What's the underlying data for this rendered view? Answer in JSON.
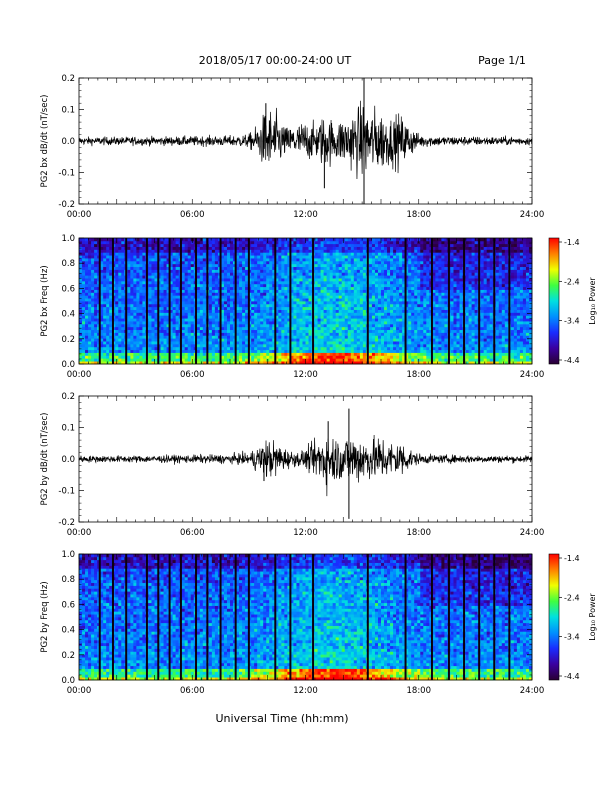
{
  "header": {
    "title": "2018/05/17  00:00-24:00 UT",
    "page": "Page 1/1"
  },
  "footer": {
    "xlabel": "Universal Time (hh:mm)"
  },
  "colorbar": {
    "label": "Log₁₀ Power",
    "ticks": [
      "-1.4",
      "-2.4",
      "-3.4",
      "-4.4"
    ]
  },
  "colors": {
    "trace": "#000000",
    "scale": [
      "#2a0033",
      "#3a00a0",
      "#1a2cff",
      "#0090ff",
      "#00e0e0",
      "#40ff40",
      "#f0ff00",
      "#ff8000",
      "#ff0000"
    ]
  },
  "chart_data": [
    {
      "type": "line",
      "ylabel": "PG2 bx dB/dt (nT/sec)",
      "xlabel": "",
      "x_ticks": [
        "00:00",
        "06:00",
        "12:00",
        "18:00",
        "24:00"
      ],
      "y_ticks": [
        "0.2",
        "0.1",
        "0.0",
        "-0.1",
        "-0.2"
      ],
      "xlim_hours": [
        0,
        24
      ],
      "ylim": [
        -0.2,
        0.2
      ],
      "envelope_hours": [
        0,
        2,
        4,
        6,
        8,
        9,
        9.5,
        10,
        10.5,
        11,
        11.5,
        12,
        12.5,
        13,
        13.5,
        14,
        14.5,
        15,
        15.5,
        16,
        16.5,
        17,
        17.5,
        18,
        19,
        20,
        22,
        24
      ],
      "envelope_amplitude": [
        0.012,
        0.012,
        0.013,
        0.014,
        0.016,
        0.02,
        0.05,
        0.1,
        0.08,
        0.04,
        0.05,
        0.06,
        0.05,
        0.08,
        0.06,
        0.07,
        0.09,
        0.11,
        0.1,
        0.09,
        0.07,
        0.08,
        0.05,
        0.02,
        0.015,
        0.014,
        0.013,
        0.012
      ],
      "spikes": [
        {
          "x": 15.1,
          "y": 0.2
        },
        {
          "x": 15.1,
          "y": -0.2
        },
        {
          "x": 9.9,
          "y": 0.12
        },
        {
          "x": 13.0,
          "y": -0.15
        }
      ]
    },
    {
      "type": "heatmap",
      "ylabel": "PG2 bx Freq (Hz)",
      "xlabel": "",
      "x_ticks": [
        "00:00",
        "06:00",
        "12:00",
        "18:00",
        "24:00"
      ],
      "y_ticks": [
        "1.0",
        "0.8",
        "0.6",
        "0.4",
        "0.2",
        "0.0"
      ],
      "xlim_hours": [
        0,
        24
      ],
      "ylim": [
        0,
        1.0
      ],
      "zlim": [
        -4.4,
        -1.4
      ],
      "gap_lines_hours": [
        1.1,
        1.8,
        2.5,
        3.6,
        4.2,
        4.8,
        5.4,
        6.2,
        6.8,
        7.5,
        8.3,
        9.0,
        10.4,
        11.2,
        12.4,
        15.3,
        17.3,
        18.7,
        19.6,
        20.4,
        21.2,
        22.0,
        22.8
      ],
      "low_freq_enhancement_hours": [
        9.5,
        17.0
      ]
    },
    {
      "type": "line",
      "ylabel": "PG2 by dB/dt (nT/sec)",
      "xlabel": "",
      "x_ticks": [
        "00:00",
        "06:00",
        "12:00",
        "18:00",
        "24:00"
      ],
      "y_ticks": [
        "0.2",
        "0.1",
        "0.0",
        "-0.1",
        "-0.2"
      ],
      "xlim_hours": [
        0,
        24
      ],
      "ylim": [
        -0.2,
        0.2
      ],
      "envelope_hours": [
        0,
        2,
        4,
        6,
        8,
        9,
        9.5,
        10,
        10.5,
        11,
        11.5,
        12,
        12.5,
        13,
        13.5,
        14,
        14.5,
        15,
        15.5,
        16,
        16.5,
        17,
        17.5,
        18,
        19,
        20,
        22,
        24
      ],
      "envelope_amplitude": [
        0.01,
        0.01,
        0.011,
        0.012,
        0.014,
        0.018,
        0.04,
        0.06,
        0.05,
        0.03,
        0.02,
        0.03,
        0.05,
        0.09,
        0.07,
        0.06,
        0.08,
        0.07,
        0.06,
        0.07,
        0.05,
        0.06,
        0.03,
        0.015,
        0.012,
        0.012,
        0.011,
        0.01
      ],
      "spikes": [
        {
          "x": 14.3,
          "y": 0.16
        },
        {
          "x": 14.3,
          "y": -0.19
        },
        {
          "x": 13.2,
          "y": 0.12
        },
        {
          "x": 9.8,
          "y": -0.07
        }
      ]
    },
    {
      "type": "heatmap",
      "ylabel": "PG2 by Freq (Hz)",
      "xlabel": "Universal Time (hh:mm)",
      "x_ticks": [
        "00:00",
        "06:00",
        "12:00",
        "18:00",
        "24:00"
      ],
      "y_ticks": [
        "1.0",
        "0.8",
        "0.6",
        "0.4",
        "0.2",
        "0.0"
      ],
      "xlim_hours": [
        0,
        24
      ],
      "ylim": [
        0,
        1.0
      ],
      "zlim": [
        -4.4,
        -1.4
      ],
      "gap_lines_hours": [
        1.1,
        1.8,
        2.5,
        3.6,
        4.2,
        4.8,
        5.4,
        6.2,
        6.8,
        7.5,
        8.3,
        9.0,
        10.4,
        11.2,
        12.4,
        15.3,
        17.3,
        18.7,
        19.6,
        20.4,
        21.2,
        22.0,
        22.8
      ],
      "low_freq_enhancement_hours": [
        9.5,
        17.0
      ]
    }
  ]
}
